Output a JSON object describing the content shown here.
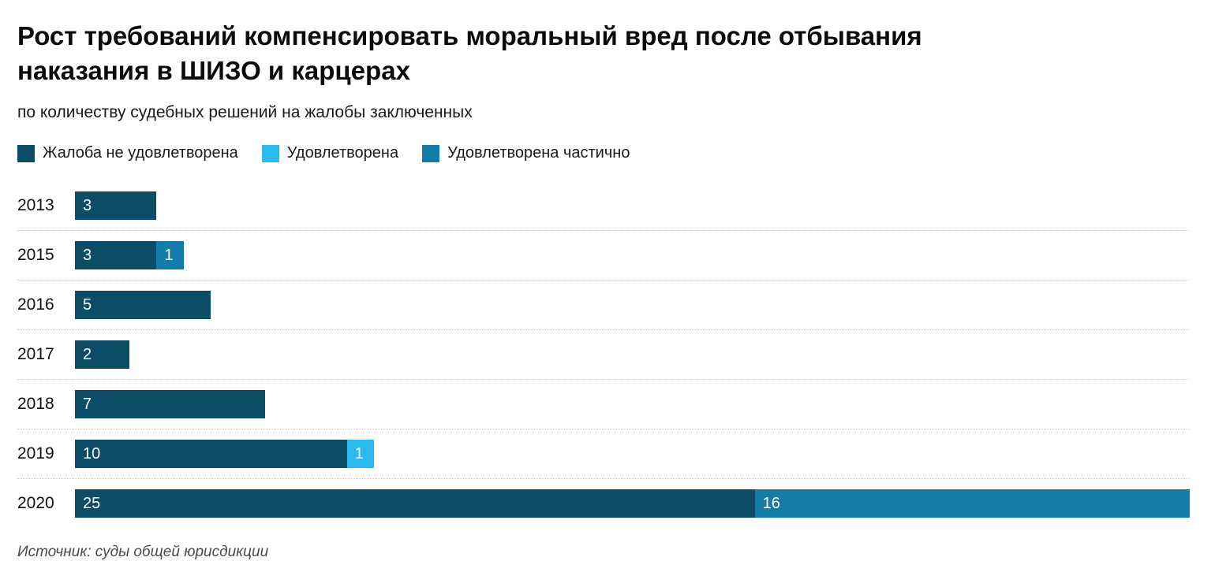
{
  "chart_data": {
    "type": "bar",
    "orientation": "horizontal",
    "stacked": true,
    "title": "Рост требований компенсировать моральный вред после отбывания наказания в ШИЗО и карцерах",
    "subtitle": "по количеству судебных решений на жалобы заключенных",
    "source": "Источник: суды общей юрисдикции",
    "x_max": 41,
    "grid": "dotted-row-separators",
    "legend_position": "top",
    "legend": [
      {
        "label": "Жалоба не удовлетворена",
        "color": "#0d4c66"
      },
      {
        "label": "Удовлетворена",
        "color": "#2bb9ef"
      },
      {
        "label": "Удовлетворена частично",
        "color": "#137ca9"
      }
    ],
    "categories": [
      "2013",
      "2015",
      "2016",
      "2017",
      "2018",
      "2019",
      "2020"
    ],
    "series": [
      {
        "name": "Жалоба не удовлетворена",
        "values": [
          3,
          3,
          5,
          2,
          7,
          10,
          25
        ]
      },
      {
        "name": "Удовлетворена",
        "values": [
          0,
          0,
          0,
          0,
          0,
          1,
          0
        ]
      },
      {
        "name": "Удовлетворена частично",
        "values": [
          0,
          1,
          0,
          0,
          0,
          0,
          16
        ]
      }
    ]
  },
  "colors": {
    "background": "#ffffff",
    "text": "#111111",
    "separator": "#c9c9c9",
    "bar_label": "#ffffff"
  }
}
